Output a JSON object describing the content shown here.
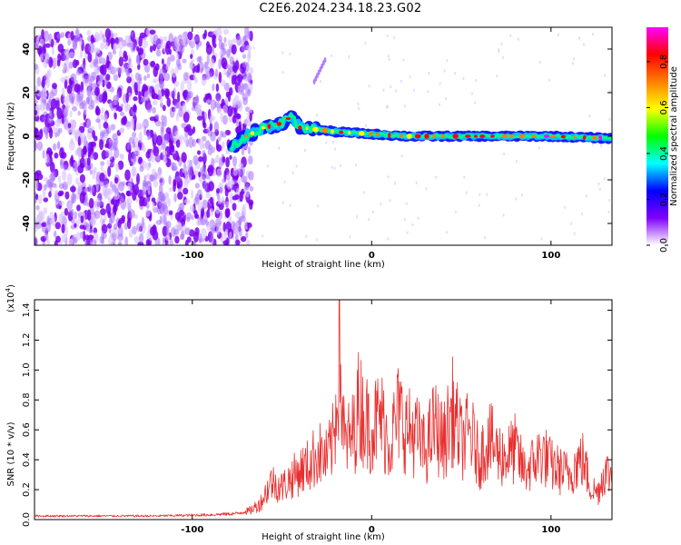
{
  "title": "C2E6.2024.234.18.23.G02",
  "chart_data": [
    {
      "type": "heatmap",
      "xlabel": "Height of straight line (km)",
      "ylabel": "Frequency (Hz)",
      "xlim": [
        -188,
        134
      ],
      "ylim": [
        -50,
        50
      ],
      "x_ticks": [
        -100,
        0,
        100
      ],
      "y_ticks": [
        -40,
        -20,
        0,
        20,
        40
      ],
      "colorbar": {
        "label": "Normalized spectral amplitude",
        "range": [
          0.0,
          0.95
        ],
        "ticks": [
          0.0,
          0.2,
          0.4,
          0.6,
          0.8
        ],
        "colors": [
          "#ffffff",
          "#8000ff",
          "#0000ff",
          "#00ffff",
          "#00ff00",
          "#ffff00",
          "#ff8000",
          "#ff0000",
          "#ff00ff"
        ]
      },
      "features": [
        {
          "label": "noise",
          "x_range": [
            -188,
            -75
          ],
          "y_range": [
            -50,
            48
          ],
          "amplitude": 0.15
        },
        {
          "label": "signal track",
          "points": [
            [
              -78,
              -5
            ],
            [
              -70,
              0
            ],
            [
              -60,
              4
            ],
            [
              -50,
              6
            ],
            [
              -45,
              9
            ],
            [
              -40,
              4
            ],
            [
              -30,
              3
            ],
            [
              -20,
              2
            ],
            [
              0,
              1
            ],
            [
              20,
              0
            ],
            [
              50,
              0
            ],
            [
              100,
              0
            ],
            [
              134,
              -1
            ]
          ],
          "amplitude": 0.8
        },
        {
          "label": "streak",
          "x_range": [
            -32,
            -26
          ],
          "y_range": [
            25,
            35
          ],
          "amplitude": 0.3
        }
      ]
    },
    {
      "type": "line",
      "xlabel": "Height of straight line (km)",
      "ylabel": "SNR (10 * v/v)",
      "y_multiplier": "(x10",
      "y_multiplier_exp": "4",
      "xlim": [
        -188,
        134
      ],
      "ylim": [
        0.0,
        1.47
      ],
      "x_ticks": [
        -100,
        0,
        100
      ],
      "y_ticks": [
        0.0,
        0.2,
        0.4,
        0.6,
        0.8,
        1.0,
        1.2,
        1.4
      ],
      "series": [
        {
          "color": "#e83030",
          "envelope": [
            [
              -188,
              0.03
            ],
            [
              -120,
              0.03
            ],
            [
              -90,
              0.04
            ],
            [
              -75,
              0.05
            ],
            [
              -68,
              0.08
            ],
            [
              -62,
              0.15
            ],
            [
              -56,
              0.35
            ],
            [
              -50,
              0.3
            ],
            [
              -45,
              0.38
            ],
            [
              -40,
              0.45
            ],
            [
              -35,
              0.5
            ],
            [
              -30,
              0.62
            ],
            [
              -25,
              0.55
            ],
            [
              -21,
              0.75
            ],
            [
              -18,
              1.47
            ],
            [
              -15,
              0.68
            ],
            [
              -10,
              0.8
            ],
            [
              -7,
              1.08
            ],
            [
              -3,
              0.9
            ],
            [
              0,
              0.85
            ],
            [
              5,
              0.95
            ],
            [
              10,
              0.7
            ],
            [
              15,
              0.98
            ],
            [
              20,
              0.82
            ],
            [
              25,
              0.78
            ],
            [
              30,
              0.62
            ],
            [
              35,
              0.88
            ],
            [
              40,
              0.7
            ],
            [
              45,
              1.0
            ],
            [
              50,
              0.72
            ],
            [
              55,
              0.8
            ],
            [
              60,
              0.55
            ],
            [
              65,
              0.75
            ],
            [
              70,
              0.62
            ],
            [
              75,
              0.58
            ],
            [
              80,
              0.65
            ],
            [
              85,
              0.45
            ],
            [
              90,
              0.52
            ],
            [
              95,
              0.62
            ],
            [
              100,
              0.5
            ],
            [
              105,
              0.45
            ],
            [
              110,
              0.42
            ],
            [
              115,
              0.53
            ],
            [
              118,
              0.55
            ],
            [
              122,
              0.3
            ],
            [
              126,
              0.25
            ],
            [
              130,
              0.45
            ],
            [
              134,
              0.4
            ]
          ]
        }
      ]
    }
  ]
}
